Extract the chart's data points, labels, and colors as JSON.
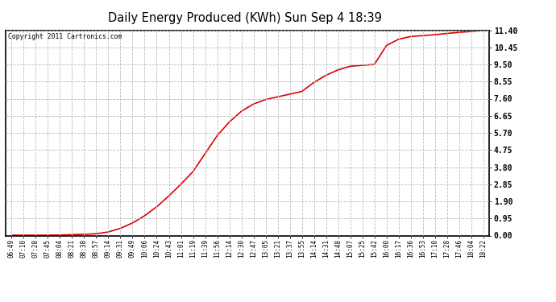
{
  "title": "Daily Energy Produced (KWh) Sun Sep 4 18:39",
  "copyright": "Copyright 2011 Cartronics.com",
  "line_color": "#dd0000",
  "bg_color": "#ffffff",
  "plot_bg_color": "#ffffff",
  "grid_color": "#bbbbbb",
  "yticks": [
    0.0,
    0.95,
    1.9,
    2.85,
    3.8,
    4.75,
    5.7,
    6.65,
    7.6,
    8.55,
    9.5,
    10.45,
    11.4
  ],
  "ymin": 0.0,
  "ymax": 11.4,
  "x_labels": [
    "06:49",
    "07:10",
    "07:28",
    "07:45",
    "08:04",
    "08:21",
    "08:38",
    "08:57",
    "09:14",
    "09:31",
    "09:49",
    "10:06",
    "10:24",
    "10:43",
    "11:01",
    "11:19",
    "11:39",
    "11:56",
    "12:14",
    "12:30",
    "12:47",
    "13:05",
    "13:21",
    "13:37",
    "13:55",
    "14:14",
    "14:31",
    "14:48",
    "15:07",
    "15:25",
    "15:42",
    "16:00",
    "16:17",
    "16:36",
    "16:53",
    "17:10",
    "17:28",
    "17:46",
    "18:04",
    "18:22"
  ],
  "y_values": [
    0.02,
    0.02,
    0.02,
    0.02,
    0.03,
    0.05,
    0.07,
    0.1,
    0.2,
    0.4,
    0.7,
    1.1,
    1.6,
    2.2,
    2.85,
    3.55,
    4.55,
    5.55,
    6.3,
    6.9,
    7.3,
    7.55,
    7.7,
    7.85,
    8.0,
    8.5,
    8.9,
    9.2,
    9.4,
    9.45,
    9.5,
    10.55,
    10.9,
    11.05,
    11.1,
    11.15,
    11.22,
    11.28,
    11.33,
    11.38
  ]
}
